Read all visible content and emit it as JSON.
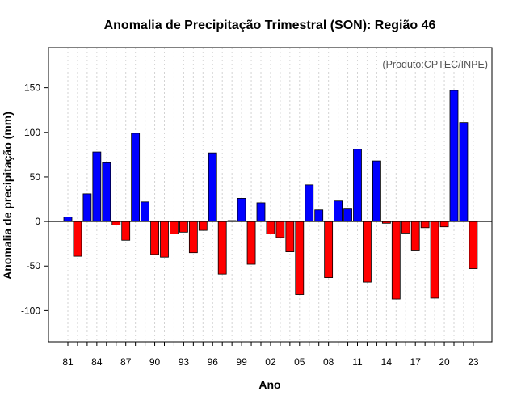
{
  "chart_data": {
    "type": "bar",
    "title": "Anomalia de Precipitação Trimestral (SON): Região 46",
    "xlabel": "Ano",
    "ylabel": "Anomalia de precipitação (mm)",
    "annotation": "(Produto:CPTEC/INPE)",
    "ylim": [
      -135,
      195
    ],
    "yticks": [
      -100,
      -50,
      0,
      50,
      100,
      150
    ],
    "xtick_labels": [
      "81",
      "84",
      "87",
      "90",
      "93",
      "96",
      "99",
      "02",
      "05",
      "08",
      "11",
      "14",
      "17",
      "20",
      "23"
    ],
    "grid": true,
    "categories": [
      "1981",
      "1982",
      "1983",
      "1984",
      "1985",
      "1986",
      "1987",
      "1988",
      "1989",
      "1990",
      "1991",
      "1992",
      "1993",
      "1994",
      "1995",
      "1996",
      "1997",
      "1998",
      "1999",
      "2000",
      "2001",
      "2002",
      "2003",
      "2004",
      "2005",
      "2006",
      "2007",
      "2008",
      "2009",
      "2010",
      "2011",
      "2012",
      "2013",
      "2014",
      "2015",
      "2016",
      "2017",
      "2018",
      "2019",
      "2020",
      "2021",
      "2022",
      "2023"
    ],
    "values": [
      5,
      -39,
      31,
      78,
      66,
      -4,
      -21,
      99,
      22,
      -37,
      -40,
      -14,
      -12,
      -35,
      -10,
      77,
      -59,
      1,
      26,
      -48,
      21,
      -14,
      -18,
      -34,
      -82,
      41,
      13,
      -63,
      23,
      14,
      81,
      -68,
      68,
      -2,
      -87,
      -13,
      -33,
      -7,
      -86,
      -6,
      147,
      111,
      -53
    ],
    "colors": {
      "positive": "#0000ff",
      "negative": "#ff0000",
      "zero_line": "#000000",
      "grid": "#d3d3d3",
      "border": "#000000"
    }
  }
}
